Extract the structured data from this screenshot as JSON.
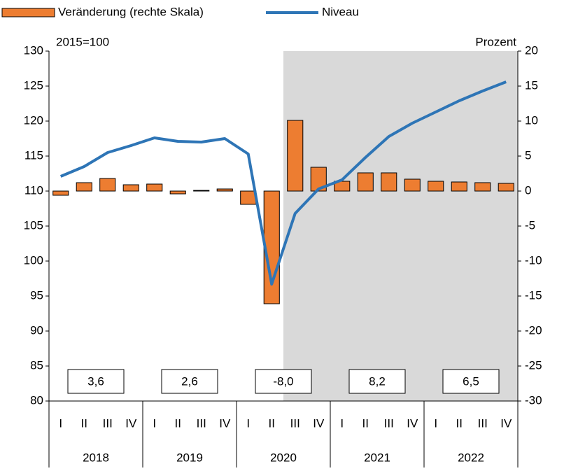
{
  "chart_data": {
    "type": "bar",
    "categories": [
      "I",
      "II",
      "III",
      "IV",
      "I",
      "II",
      "III",
      "IV",
      "I",
      "II",
      "III",
      "IV",
      "I",
      "II",
      "III",
      "IV",
      "I",
      "II",
      "III",
      "IV"
    ],
    "years": [
      "2018",
      "2019",
      "2020",
      "2021",
      "2022"
    ],
    "annual": {
      "values": [
        3.6,
        2.6,
        -8.0,
        8.2,
        6.5
      ],
      "value_labels": [
        "3,6",
        "2,6",
        "-8,0",
        "8,2",
        "6,5"
      ]
    },
    "ylabel": "2015=100",
    "y2label": "Prozent",
    "series": [
      {
        "name": "Veränderung (rechte Skala)",
        "type": "bar",
        "axis": "y2",
        "color": "#ed7d31",
        "values": [
          -0.6,
          1.2,
          1.8,
          0.9,
          1.0,
          -0.4,
          0.1,
          0.3,
          -1.9,
          -16.1,
          10.1,
          3.4,
          1.4,
          2.6,
          2.6,
          1.7,
          1.4,
          1.3,
          1.2,
          1.1
        ]
      },
      {
        "name": "Niveau",
        "type": "line",
        "color": "#2e75b6",
        "values": [
          112.1,
          113.5,
          115.5,
          116.5,
          117.6,
          117.1,
          117.0,
          117.5,
          115.3,
          96.7,
          106.8,
          110.3,
          111.6,
          114.8,
          117.8,
          119.7,
          121.3,
          122.9,
          124.3,
          125.6
        ]
      }
    ],
    "ylim": [
      80,
      130
    ],
    "yticks": [
      80,
      85,
      90,
      95,
      100,
      105,
      110,
      115,
      120,
      125,
      130
    ],
    "y2lim": [
      -30,
      20
    ],
    "y2ticks": [
      -30,
      -25,
      -20,
      -15,
      -10,
      -5,
      0,
      5,
      10,
      15,
      20
    ]
  }
}
